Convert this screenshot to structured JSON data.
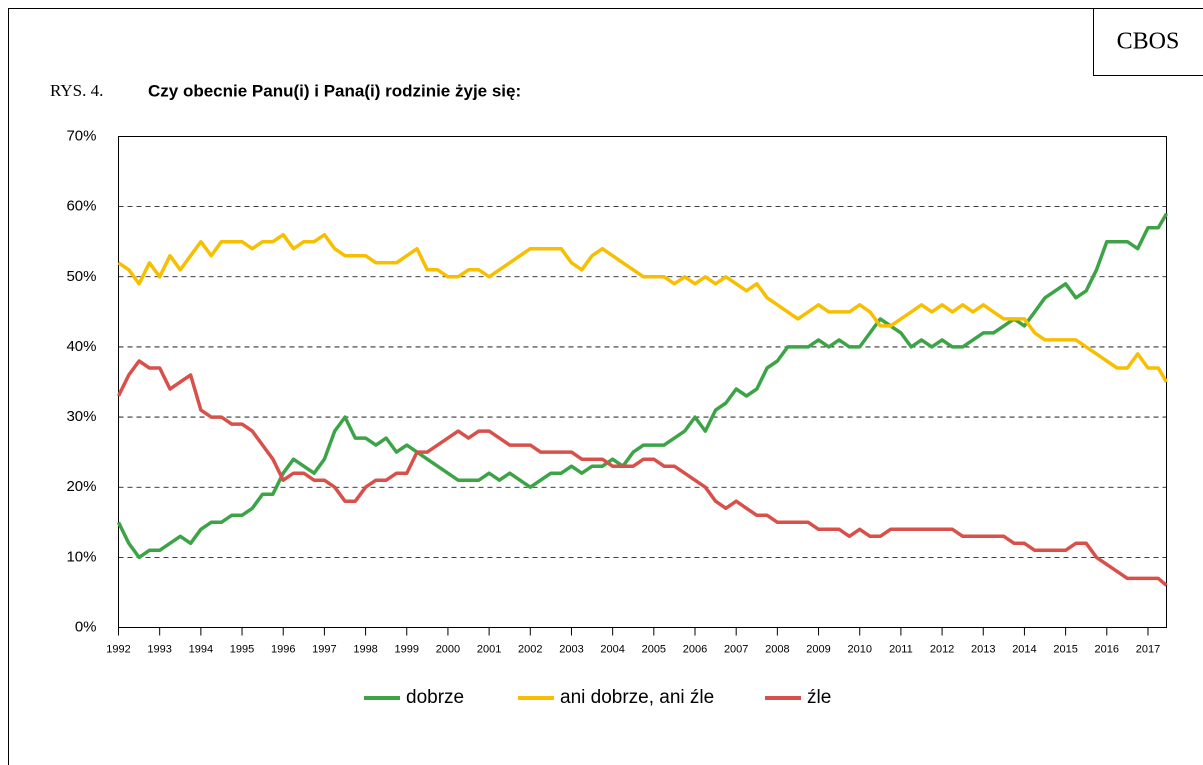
{
  "chart_data": {
    "type": "line",
    "badge": "CBOS",
    "figure_label": "RYS. 4.",
    "title": "Czy obecnie Panu(i) i Pana(i) rodzinie żyje się:",
    "legend": "bottom",
    "grid": true,
    "x": [
      1992,
      1992.25,
      1992.5,
      1992.75,
      1993,
      1993.25,
      1993.5,
      1993.75,
      1994,
      1994.25,
      1994.5,
      1994.75,
      1995,
      1995.25,
      1995.5,
      1995.75,
      1996,
      1996.25,
      1996.5,
      1996.75,
      1997,
      1997.25,
      1997.5,
      1997.75,
      1998,
      1998.25,
      1998.5,
      1998.75,
      1999,
      1999.25,
      1999.5,
      1999.75,
      2000,
      2000.25,
      2000.5,
      2000.75,
      2001,
      2001.25,
      2001.5,
      2001.75,
      2002,
      2002.25,
      2002.5,
      2002.75,
      2003,
      2003.25,
      2003.5,
      2003.75,
      2004,
      2004.25,
      2004.5,
      2004.75,
      2005,
      2005.25,
      2005.5,
      2005.75,
      2006,
      2006.25,
      2006.5,
      2006.75,
      2007,
      2007.25,
      2007.5,
      2007.75,
      2008,
      2008.25,
      2008.5,
      2008.75,
      2009,
      2009.25,
      2009.5,
      2009.75,
      2010,
      2010.25,
      2010.5,
      2010.75,
      2011,
      2011.25,
      2011.5,
      2011.75,
      2012,
      2012.25,
      2012.5,
      2012.75,
      2013,
      2013.25,
      2013.5,
      2013.75,
      2014,
      2014.25,
      2014.5,
      2014.75,
      2015,
      2015.25,
      2015.5,
      2015.75,
      2016,
      2016.25,
      2016.5,
      2016.75,
      2017,
      2017.25,
      2017.45
    ],
    "series": [
      {
        "name": "dobrze",
        "color": "#3ca447",
        "values": [
          15,
          12,
          10,
          11,
          11,
          12,
          13,
          12,
          14,
          15,
          15,
          16,
          16,
          17,
          19,
          19,
          22,
          24,
          23,
          22,
          24,
          28,
          30,
          27,
          27,
          26,
          27,
          25,
          26,
          25,
          24,
          23,
          22,
          21,
          21,
          21,
          22,
          21,
          22,
          21,
          20,
          21,
          22,
          22,
          23,
          22,
          23,
          23,
          24,
          23,
          25,
          26,
          26,
          26,
          27,
          28,
          30,
          28,
          31,
          32,
          34,
          33,
          34,
          37,
          38,
          40,
          40,
          40,
          41,
          40,
          41,
          40,
          40,
          42,
          44,
          43,
          42,
          40,
          41,
          40,
          41,
          40,
          40,
          41,
          42,
          42,
          43,
          44,
          43,
          45,
          47,
          48,
          49,
          47,
          48,
          51,
          55,
          55,
          55,
          54,
          57,
          57,
          59
        ]
      },
      {
        "name": "ani dobrze, ani źle",
        "color": "#f7bf00",
        "values": [
          52,
          51,
          49,
          52,
          50,
          53,
          51,
          53,
          55,
          53,
          55,
          55,
          55,
          54,
          55,
          55,
          56,
          54,
          55,
          55,
          56,
          54,
          53,
          53,
          53,
          52,
          52,
          52,
          53,
          54,
          51,
          51,
          50,
          50,
          51,
          51,
          50,
          51,
          52,
          53,
          54,
          54,
          54,
          54,
          52,
          51,
          53,
          54,
          53,
          52,
          51,
          50,
          50,
          50,
          49,
          50,
          49,
          50,
          49,
          50,
          49,
          48,
          49,
          47,
          46,
          45,
          44,
          45,
          46,
          45,
          45,
          45,
          46,
          45,
          43,
          43,
          44,
          45,
          46,
          45,
          46,
          45,
          46,
          45,
          46,
          45,
          44,
          44,
          44,
          42,
          41,
          41,
          41,
          41,
          40,
          39,
          38,
          37,
          37,
          39,
          37,
          37,
          35
        ]
      },
      {
        "name": "źle",
        "color": "#d9504a",
        "values": [
          33,
          36,
          38,
          37,
          37,
          34,
          35,
          36,
          31,
          30,
          30,
          29,
          29,
          28,
          26,
          24,
          21,
          22,
          22,
          21,
          21,
          20,
          18,
          18,
          20,
          21,
          21,
          22,
          22,
          25,
          25,
          26,
          27,
          28,
          27,
          28,
          28,
          27,
          26,
          26,
          26,
          25,
          25,
          25,
          25,
          24,
          24,
          24,
          23,
          23,
          23,
          24,
          24,
          23,
          23,
          22,
          21,
          20,
          18,
          17,
          18,
          17,
          16,
          16,
          15,
          15,
          15,
          15,
          14,
          14,
          14,
          13,
          14,
          13,
          13,
          14,
          14,
          14,
          14,
          14,
          14,
          14,
          13,
          13,
          13,
          13,
          13,
          12,
          12,
          11,
          11,
          11,
          11,
          12,
          12,
          10,
          9,
          8,
          7,
          7,
          7,
          7,
          6
        ]
      }
    ],
    "xlim": [
      1992,
      2017.45
    ],
    "xticks": [
      1992,
      1993,
      1994,
      1995,
      1996,
      1997,
      1998,
      1999,
      2000,
      2001,
      2002,
      2003,
      2004,
      2005,
      2006,
      2007,
      2008,
      2009,
      2010,
      2011,
      2012,
      2013,
      2014,
      2015,
      2016,
      2017
    ],
    "ylim": [
      0,
      70
    ],
    "yticks": [
      {
        "value": 0,
        "label": "0%"
      },
      {
        "value": 10,
        "label": "10%"
      },
      {
        "value": 20,
        "label": "20%"
      },
      {
        "value": 30,
        "label": "30%"
      },
      {
        "value": 40,
        "label": "40%"
      },
      {
        "value": 50,
        "label": "50%"
      },
      {
        "value": 60,
        "label": "60%"
      },
      {
        "value": 70,
        "label": "70%"
      }
    ]
  }
}
